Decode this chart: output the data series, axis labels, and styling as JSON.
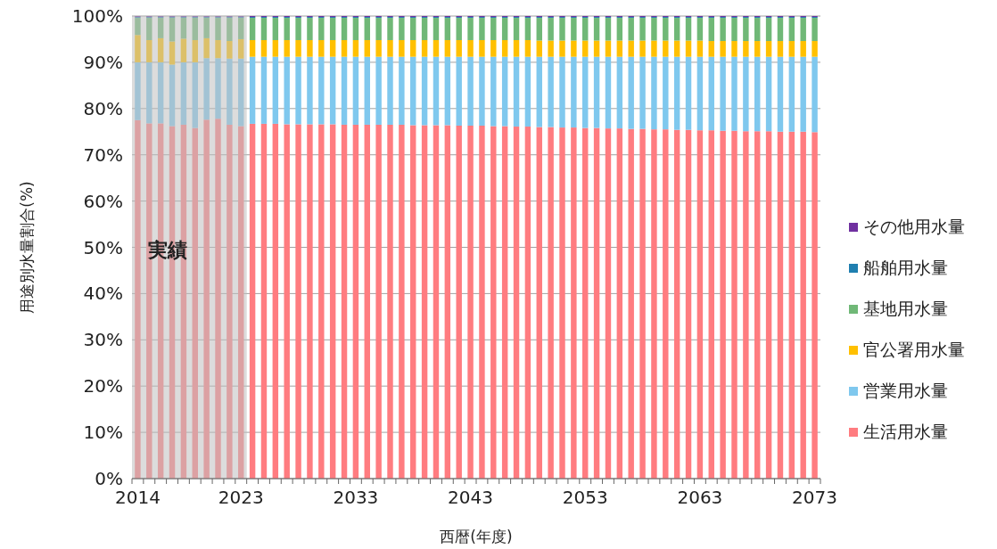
{
  "chart_data": {
    "type": "bar",
    "stacked": true,
    "xlabel": "西暦(年度)",
    "ylabel": "用途別水量割合(%)",
    "categories": [
      "2014",
      null,
      null,
      null,
      null,
      null,
      null,
      null,
      null,
      "2023",
      null,
      null,
      null,
      null,
      null,
      null,
      null,
      null,
      null,
      "2033",
      null,
      null,
      null,
      null,
      null,
      null,
      null,
      null,
      null,
      "2043",
      null,
      null,
      null,
      null,
      null,
      null,
      null,
      null,
      null,
      "2053",
      null,
      null,
      null,
      null,
      null,
      null,
      null,
      null,
      null,
      "2063",
      null,
      null,
      null,
      null,
      null,
      null,
      null,
      null,
      null,
      "2073"
    ],
    "ylim": [
      0,
      100
    ],
    "yticks": [
      {
        "value": 0,
        "label": "0%"
      },
      {
        "value": 10,
        "label": "10%"
      },
      {
        "value": 20,
        "label": "20%"
      },
      {
        "value": 30,
        "label": "30%"
      },
      {
        "value": 40,
        "label": "40%"
      },
      {
        "value": 50,
        "label": "50%"
      },
      {
        "value": 60,
        "label": "60%"
      },
      {
        "value": 70,
        "label": "70%"
      },
      {
        "value": 80,
        "label": "80%"
      },
      {
        "value": 90,
        "label": "90%"
      },
      {
        "value": 100,
        "label": "100%"
      }
    ],
    "grid": "y",
    "legend": "right",
    "bands": [
      {
        "axis": "x",
        "from": "2014",
        "to": "2023",
        "label": "実績",
        "color": "#bfbfbf"
      }
    ],
    "series": [
      {
        "name": "生活用水量",
        "color": "#ff7c80",
        "values": [
          77.5,
          76.8,
          76.8,
          76.2,
          76.5,
          75.8,
          77.6,
          77.8,
          76.5,
          76.2,
          76.7,
          76.7,
          76.7,
          76.6,
          76.6,
          76.6,
          76.6,
          76.6,
          76.5,
          76.5,
          76.5,
          76.5,
          76.5,
          76.5,
          76.4,
          76.4,
          76.4,
          76.4,
          76.3,
          76.3,
          76.3,
          76.2,
          76.2,
          76.1,
          76.1,
          76.0,
          76.0,
          75.9,
          75.9,
          75.8,
          75.8,
          75.7,
          75.7,
          75.6,
          75.6,
          75.5,
          75.5,
          75.4,
          75.4,
          75.3,
          75.3,
          75.2,
          75.2,
          75.1,
          75.1,
          75.1,
          75.0,
          75.0,
          75.0,
          74.9
        ]
      },
      {
        "name": "営業用水量",
        "color": "#7fc8ee",
        "values": [
          12.5,
          13.2,
          13.2,
          13.3,
          13.5,
          14.2,
          13.3,
          13.1,
          14.3,
          14.6,
          14.5,
          14.5,
          14.5,
          14.6,
          14.6,
          14.6,
          14.6,
          14.6,
          14.7,
          14.7,
          14.7,
          14.7,
          14.7,
          14.7,
          14.8,
          14.8,
          14.8,
          14.8,
          14.9,
          14.9,
          14.9,
          15.0,
          15.0,
          15.1,
          15.1,
          15.2,
          15.2,
          15.3,
          15.3,
          15.4,
          15.4,
          15.5,
          15.5,
          15.6,
          15.6,
          15.7,
          15.7,
          15.8,
          15.8,
          15.9,
          15.9,
          16.0,
          16.0,
          16.1,
          16.1,
          16.1,
          16.2,
          16.2,
          16.2,
          16.3
        ]
      },
      {
        "name": "官公署用水量",
        "color": "#ffc000",
        "values": [
          5.9,
          4.8,
          5.2,
          5.0,
          5.1,
          4.8,
          4.3,
          3.9,
          3.8,
          4.2,
          3.6,
          3.6,
          3.6,
          3.6,
          3.6,
          3.6,
          3.6,
          3.6,
          3.6,
          3.6,
          3.6,
          3.6,
          3.6,
          3.6,
          3.6,
          3.6,
          3.6,
          3.6,
          3.6,
          3.6,
          3.6,
          3.6,
          3.6,
          3.6,
          3.6,
          3.5,
          3.5,
          3.5,
          3.5,
          3.5,
          3.5,
          3.5,
          3.5,
          3.5,
          3.5,
          3.5,
          3.5,
          3.5,
          3.5,
          3.5,
          3.4,
          3.4,
          3.4,
          3.4,
          3.4,
          3.4,
          3.4,
          3.4,
          3.4,
          3.4
        ]
      },
      {
        "name": "基地用水量",
        "color": "#70b877",
        "values": [
          3.7,
          4.8,
          4.4,
          5.1,
          4.5,
          4.8,
          4.4,
          4.8,
          5.0,
          4.6,
          4.8,
          4.8,
          4.8,
          4.8,
          4.8,
          4.8,
          4.8,
          4.8,
          4.8,
          4.8,
          4.8,
          4.8,
          4.8,
          4.8,
          4.8,
          4.8,
          4.8,
          4.8,
          4.8,
          4.8,
          4.8,
          4.8,
          4.8,
          4.8,
          4.8,
          4.9,
          4.9,
          4.9,
          4.9,
          4.9,
          4.9,
          4.9,
          4.9,
          4.9,
          4.9,
          4.9,
          4.9,
          4.9,
          4.9,
          4.9,
          5.0,
          5.0,
          5.0,
          5.0,
          5.0,
          5.0,
          5.0,
          5.0,
          5.0,
          5.0
        ]
      },
      {
        "name": "船舶用水量",
        "color": "#1f7fb0",
        "values": [
          0.2,
          0.2,
          0.2,
          0.2,
          0.2,
          0.2,
          0.2,
          0.2,
          0.2,
          0.2,
          0.2,
          0.2,
          0.2,
          0.2,
          0.2,
          0.2,
          0.2,
          0.2,
          0.2,
          0.2,
          0.2,
          0.2,
          0.2,
          0.2,
          0.2,
          0.2,
          0.2,
          0.2,
          0.2,
          0.2,
          0.2,
          0.2,
          0.2,
          0.2,
          0.2,
          0.2,
          0.2,
          0.2,
          0.2,
          0.2,
          0.2,
          0.2,
          0.2,
          0.2,
          0.2,
          0.2,
          0.2,
          0.2,
          0.2,
          0.2,
          0.2,
          0.2,
          0.2,
          0.2,
          0.2,
          0.2,
          0.2,
          0.2,
          0.2,
          0.2
        ]
      },
      {
        "name": "その他用水量",
        "color": "#7030a0",
        "values": [
          0.2,
          0.2,
          0.2,
          0.2,
          0.2,
          0.2,
          0.2,
          0.2,
          0.2,
          0.2,
          0.2,
          0.2,
          0.2,
          0.2,
          0.2,
          0.2,
          0.2,
          0.2,
          0.2,
          0.2,
          0.2,
          0.2,
          0.2,
          0.2,
          0.2,
          0.2,
          0.2,
          0.2,
          0.2,
          0.2,
          0.2,
          0.2,
          0.2,
          0.2,
          0.2,
          0.2,
          0.2,
          0.2,
          0.2,
          0.2,
          0.2,
          0.2,
          0.2,
          0.2,
          0.2,
          0.2,
          0.2,
          0.2,
          0.2,
          0.2,
          0.2,
          0.2,
          0.2,
          0.2,
          0.2,
          0.2,
          0.2,
          0.2,
          0.2,
          0.2
        ]
      }
    ]
  }
}
